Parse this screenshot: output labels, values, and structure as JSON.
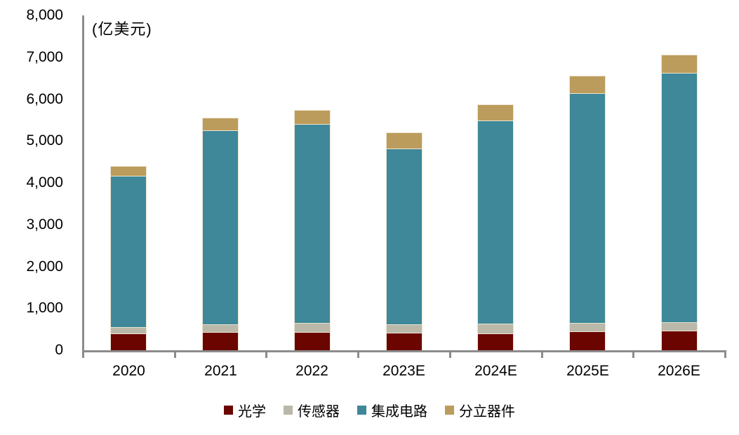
{
  "chart_data": {
    "type": "bar",
    "stacked": true,
    "unit_label": "(亿美元)",
    "categories": [
      "2020",
      "2021",
      "2022",
      "2023E",
      "2024E",
      "2025E",
      "2026E"
    ],
    "series": [
      {
        "key": "optics",
        "name": "光学",
        "color": "#6b0500",
        "values": [
          404,
          434,
          438,
          420,
          410,
          450,
          470
        ]
      },
      {
        "key": "sensor",
        "name": "传感器",
        "color": "#bab8a8",
        "values": [
          150,
          191,
          221,
          200,
          230,
          200,
          200
        ]
      },
      {
        "key": "ic",
        "name": "集成电路",
        "color": "#3e8899",
        "values": [
          3612,
          4630,
          4740,
          4205,
          4855,
          5490,
          5960
        ]
      },
      {
        "key": "discrete",
        "name": "分立器件",
        "color": "#bc9c5c",
        "values": [
          238,
          303,
          341,
          380,
          385,
          415,
          430
        ]
      }
    ],
    "totals": [
      4404,
      5558,
      5740,
      5205,
      5880,
      6555,
      7060
    ],
    "ylim": [
      0,
      8000
    ],
    "ytick_interval": 1000,
    "ytick_labels": [
      "0",
      "1,000",
      "2,000",
      "3,000",
      "4,000",
      "5,000",
      "6,000",
      "7,000",
      "8,000"
    ],
    "grid": false,
    "legend_position": "bottom",
    "axis_color": "#8c8c8c",
    "segment_border_color": "#ece4d2"
  }
}
